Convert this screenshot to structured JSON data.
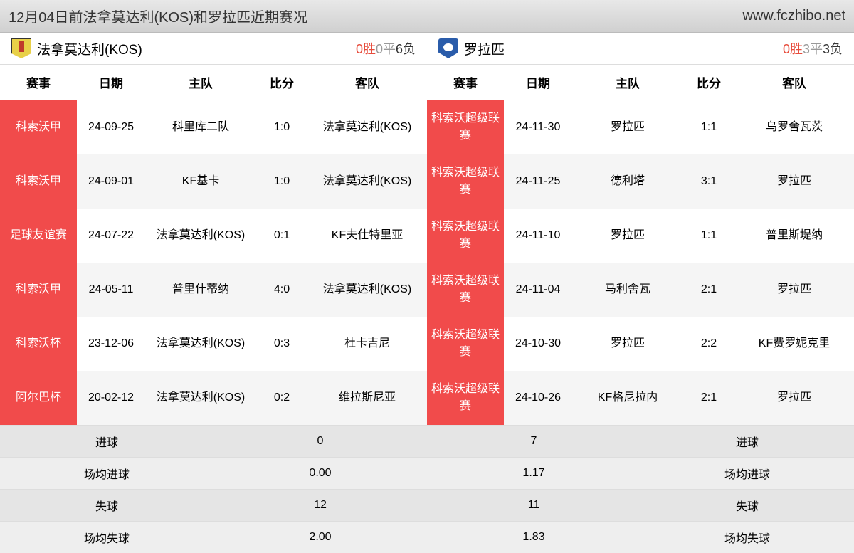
{
  "header": {
    "title": "12月04日前法拿莫达利(KOS)和罗拉匹近期赛况",
    "site": "www.fczhibo.net"
  },
  "columns": [
    "赛事",
    "日期",
    "主队",
    "比分",
    "客队"
  ],
  "teamA": {
    "name": "法拿莫达利(KOS)",
    "wins": "0胜",
    "draws": "0平",
    "losses": "6负",
    "rows": [
      {
        "comp": "科索沃甲",
        "date": "24-09-25",
        "home": "科里库二队",
        "score": "1:0",
        "away": "法拿莫达利(KOS)"
      },
      {
        "comp": "科索沃甲",
        "date": "24-09-01",
        "home": "KF基卡",
        "score": "1:0",
        "away": "法拿莫达利(KOS)"
      },
      {
        "comp": "足球友谊赛",
        "date": "24-07-22",
        "home": "法拿莫达利(KOS)",
        "score": "0:1",
        "away": "KF夫仕特里亚"
      },
      {
        "comp": "科索沃甲",
        "date": "24-05-11",
        "home": "普里什蒂纳",
        "score": "4:0",
        "away": "法拿莫达利(KOS)"
      },
      {
        "comp": "科索沃杯",
        "date": "23-12-06",
        "home": "法拿莫达利(KOS)",
        "score": "0:3",
        "away": "杜卡吉尼"
      },
      {
        "comp": "阿尔巴杯",
        "date": "20-02-12",
        "home": "法拿莫达利(KOS)",
        "score": "0:2",
        "away": "维拉斯尼亚"
      }
    ]
  },
  "teamB": {
    "name": "罗拉匹",
    "wins": "0胜",
    "draws": "3平",
    "losses": "3负",
    "rows": [
      {
        "comp": "科索沃超级联赛",
        "date": "24-11-30",
        "home": "罗拉匹",
        "score": "1:1",
        "away": "乌罗舍瓦茨"
      },
      {
        "comp": "科索沃超级联赛",
        "date": "24-11-25",
        "home": "德利塔",
        "score": "3:1",
        "away": "罗拉匹"
      },
      {
        "comp": "科索沃超级联赛",
        "date": "24-11-10",
        "home": "罗拉匹",
        "score": "1:1",
        "away": "普里斯堤纳"
      },
      {
        "comp": "科索沃超级联赛",
        "date": "24-11-04",
        "home": "马利舍瓦",
        "score": "2:1",
        "away": "罗拉匹"
      },
      {
        "comp": "科索沃超级联赛",
        "date": "24-10-30",
        "home": "罗拉匹",
        "score": "2:2",
        "away": "KF费罗妮克里"
      },
      {
        "comp": "科索沃超级联赛",
        "date": "24-10-26",
        "home": "KF格尼拉内",
        "score": "2:1",
        "away": "罗拉匹"
      }
    ]
  },
  "summary": {
    "labels": {
      "goals": "进球",
      "avg_goals": "场均进球",
      "conceded": "失球",
      "avg_conceded": "场均失球"
    },
    "a": {
      "goals": "0",
      "avg_goals": "0.00",
      "conceded": "12",
      "avg_conceded": "2.00"
    },
    "b": {
      "goals": "7",
      "avg_goals": "1.17",
      "conceded": "11",
      "avg_conceded": "1.83"
    }
  },
  "colors": {
    "comp_bg": "#f14b4b",
    "header_bg": "#e0e0e0"
  }
}
